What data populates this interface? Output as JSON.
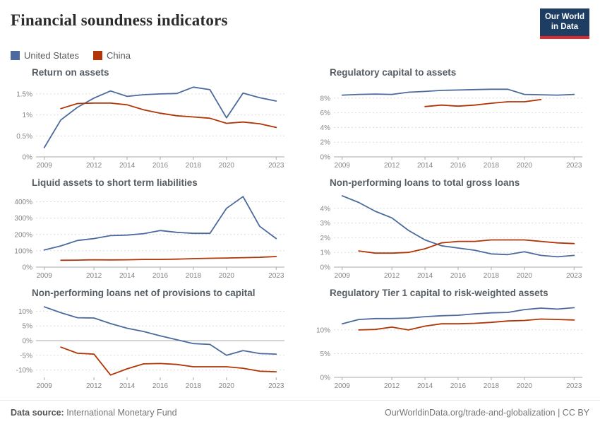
{
  "header": {
    "title": "Financial soundness indicators",
    "logo": {
      "line1": "Our World",
      "line2": "in Data",
      "bg_color": "#1d3d63",
      "bar_color": "#dc2a2f"
    }
  },
  "legend": {
    "items": [
      {
        "label": "United States",
        "color": "#4C6A9C"
      },
      {
        "label": "China",
        "color": "#B13507"
      }
    ]
  },
  "footer": {
    "source_label": "Data source:",
    "source_value": " International Monetary Fund",
    "attribution": "OurWorldinData.org/trade-and-globalization | CC BY"
  },
  "chart_data": [
    {
      "type": "line",
      "title": "Return on assets",
      "xlim": [
        2008.5,
        2023.5
      ],
      "ylim": [
        0,
        1.75
      ],
      "grid": true,
      "xticks": [
        2009,
        2012,
        2014,
        2016,
        2018,
        2020,
        2023
      ],
      "yticks": [
        {
          "v": 0,
          "label": "0%"
        },
        {
          "v": 0.5,
          "label": "0.5%"
        },
        {
          "v": 1,
          "label": "1%"
        },
        {
          "v": 1.5,
          "label": "1.5%"
        }
      ],
      "series": [
        {
          "name": "United States",
          "color": "#4C6A9C",
          "x": [
            2009,
            2010,
            2011,
            2012,
            2013,
            2014,
            2015,
            2016,
            2017,
            2018,
            2019,
            2020,
            2021,
            2022,
            2023
          ],
          "values": [
            0.22,
            0.88,
            1.18,
            1.4,
            1.57,
            1.44,
            1.48,
            1.5,
            1.51,
            1.66,
            1.6,
            0.93,
            1.52,
            1.41,
            1.33
          ]
        },
        {
          "name": "China",
          "color": "#B13507",
          "x": [
            2010,
            2011,
            2012,
            2013,
            2014,
            2015,
            2016,
            2017,
            2018,
            2019,
            2020,
            2021,
            2022,
            2023
          ],
          "values": [
            1.15,
            1.27,
            1.28,
            1.28,
            1.24,
            1.12,
            1.04,
            0.98,
            0.95,
            0.92,
            0.8,
            0.83,
            0.79,
            0.7
          ]
        }
      ]
    },
    {
      "type": "line",
      "title": "Regulatory capital to assets",
      "xlim": [
        2008.5,
        2023.5
      ],
      "ylim": [
        0,
        10
      ],
      "grid": true,
      "xticks": [
        2009,
        2012,
        2014,
        2016,
        2018,
        2020,
        2023
      ],
      "yticks": [
        {
          "v": 0,
          "label": "0%"
        },
        {
          "v": 2,
          "label": "2%"
        },
        {
          "v": 4,
          "label": "4%"
        },
        {
          "v": 6,
          "label": "6%"
        },
        {
          "v": 8,
          "label": "8%"
        }
      ],
      "series": [
        {
          "name": "United States",
          "color": "#4C6A9C",
          "x": [
            2009,
            2010,
            2011,
            2012,
            2013,
            2014,
            2015,
            2016,
            2017,
            2018,
            2019,
            2020,
            2021,
            2022,
            2023
          ],
          "values": [
            8.4,
            8.5,
            8.55,
            8.5,
            8.8,
            8.9,
            9.05,
            9.1,
            9.15,
            9.2,
            9.2,
            8.5,
            8.45,
            8.4,
            8.5
          ]
        },
        {
          "name": "China",
          "color": "#B13507",
          "x": [
            2014,
            2015,
            2016,
            2017,
            2018,
            2019,
            2020,
            2021
          ],
          "values": [
            6.85,
            7.05,
            6.9,
            7.05,
            7.3,
            7.5,
            7.5,
            7.8
          ]
        }
      ]
    },
    {
      "type": "line",
      "title": "Liquid assets to short term liabilities",
      "xlim": [
        2008.5,
        2023.5
      ],
      "ylim": [
        0,
        450
      ],
      "grid": true,
      "xticks": [
        2009,
        2012,
        2014,
        2016,
        2018,
        2020,
        2023
      ],
      "yticks": [
        {
          "v": 0,
          "label": "0%"
        },
        {
          "v": 100,
          "label": "100%"
        },
        {
          "v": 200,
          "label": "200%"
        },
        {
          "v": 300,
          "label": "300%"
        },
        {
          "v": 400,
          "label": "400%"
        }
      ],
      "series": [
        {
          "name": "United States",
          "color": "#4C6A9C",
          "x": [
            2009,
            2010,
            2011,
            2012,
            2013,
            2014,
            2015,
            2016,
            2017,
            2018,
            2019,
            2020,
            2021,
            2022,
            2023
          ],
          "values": [
            105,
            130,
            163,
            175,
            193,
            196,
            205,
            224,
            213,
            207,
            207,
            360,
            432,
            250,
            175
          ]
        },
        {
          "name": "China",
          "color": "#B13507",
          "x": [
            2010,
            2011,
            2012,
            2013,
            2014,
            2015,
            2016,
            2017,
            2018,
            2019,
            2020,
            2021,
            2022,
            2023
          ],
          "values": [
            42,
            43,
            45,
            44,
            45,
            47,
            47,
            49,
            52,
            54,
            56,
            58,
            60,
            65
          ]
        }
      ]
    },
    {
      "type": "line",
      "title": "Non-performing loans to total gross loans",
      "xlim": [
        2008.5,
        2023.5
      ],
      "ylim": [
        0,
        5
      ],
      "grid": true,
      "xticks": [
        2009,
        2012,
        2014,
        2016,
        2018,
        2020,
        2023
      ],
      "yticks": [
        {
          "v": 0,
          "label": "0%"
        },
        {
          "v": 1,
          "label": "1%"
        },
        {
          "v": 2,
          "label": "2%"
        },
        {
          "v": 3,
          "label": "3%"
        },
        {
          "v": 4,
          "label": "4%"
        }
      ],
      "series": [
        {
          "name": "United States",
          "color": "#4C6A9C",
          "x": [
            2009,
            2010,
            2011,
            2012,
            2013,
            2014,
            2015,
            2016,
            2017,
            2018,
            2019,
            2020,
            2021,
            2022,
            2023
          ],
          "values": [
            4.85,
            4.4,
            3.8,
            3.35,
            2.5,
            1.85,
            1.45,
            1.3,
            1.15,
            0.9,
            0.85,
            1.05,
            0.8,
            0.7,
            0.8
          ]
        },
        {
          "name": "China",
          "color": "#B13507",
          "x": [
            2010,
            2011,
            2012,
            2013,
            2014,
            2015,
            2016,
            2017,
            2018,
            2019,
            2020,
            2021,
            2022,
            2023
          ],
          "values": [
            1.1,
            0.95,
            0.95,
            1.0,
            1.25,
            1.65,
            1.75,
            1.75,
            1.85,
            1.85,
            1.85,
            1.75,
            1.65,
            1.6
          ]
        }
      ]
    },
    {
      "type": "line",
      "title": "Non-performing loans net of provisions to capital",
      "xlim": [
        2008.5,
        2023.5
      ],
      "ylim": [
        -12.5,
        12.5
      ],
      "grid": true,
      "xticks": [
        2009,
        2012,
        2014,
        2016,
        2018,
        2020,
        2023
      ],
      "yticks": [
        {
          "v": -10,
          "label": "-10%"
        },
        {
          "v": -5,
          "label": "-5%"
        },
        {
          "v": 0,
          "label": "0%"
        },
        {
          "v": 5,
          "label": "5%"
        },
        {
          "v": 10,
          "label": "10%"
        }
      ],
      "series": [
        {
          "name": "United States",
          "color": "#4C6A9C",
          "x": [
            2009,
            2010,
            2011,
            2012,
            2013,
            2014,
            2015,
            2016,
            2017,
            2018,
            2019,
            2020,
            2021,
            2022,
            2023
          ],
          "values": [
            11.5,
            9.5,
            7.8,
            7.7,
            5.8,
            4.2,
            3.1,
            1.6,
            0.3,
            -1.0,
            -1.3,
            -5.0,
            -3.4,
            -4.4,
            -4.6
          ]
        },
        {
          "name": "China",
          "color": "#B13507",
          "x": [
            2010,
            2011,
            2012,
            2013,
            2014,
            2015,
            2016,
            2017,
            2018,
            2019,
            2020,
            2021,
            2022,
            2023
          ],
          "values": [
            -2.2,
            -4.3,
            -4.6,
            -11.7,
            -9.6,
            -7.9,
            -7.8,
            -8.1,
            -8.9,
            -8.9,
            -8.9,
            -9.4,
            -10.4,
            -10.6
          ]
        }
      ]
    },
    {
      "type": "line",
      "title": "Regulatory Tier 1 capital to risk-weighted assets",
      "xlim": [
        2008.5,
        2023.5
      ],
      "ylim": [
        0,
        15.5
      ],
      "grid": true,
      "xticks": [
        2009,
        2012,
        2014,
        2016,
        2018,
        2020,
        2023
      ],
      "yticks": [
        {
          "v": 0,
          "label": "0%"
        },
        {
          "v": 5,
          "label": "5%"
        },
        {
          "v": 10,
          "label": "10%"
        }
      ],
      "series": [
        {
          "name": "United States",
          "color": "#4C6A9C",
          "x": [
            2009,
            2010,
            2011,
            2012,
            2013,
            2014,
            2015,
            2016,
            2017,
            2018,
            2019,
            2020,
            2021,
            2022,
            2023
          ],
          "values": [
            11.3,
            12.2,
            12.4,
            12.4,
            12.5,
            12.8,
            13.0,
            13.1,
            13.4,
            13.6,
            13.7,
            14.3,
            14.6,
            14.4,
            14.7
          ]
        },
        {
          "name": "China",
          "color": "#B13507",
          "x": [
            2010,
            2011,
            2012,
            2013,
            2014,
            2015,
            2016,
            2017,
            2018,
            2019,
            2020,
            2021,
            2022,
            2023
          ],
          "values": [
            10.0,
            10.1,
            10.6,
            10.0,
            10.8,
            11.3,
            11.3,
            11.4,
            11.6,
            11.9,
            12.0,
            12.3,
            12.2,
            12.1
          ]
        }
      ]
    }
  ]
}
